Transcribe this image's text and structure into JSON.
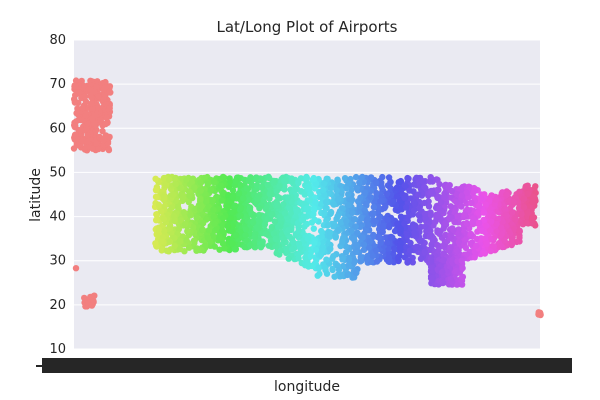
{
  "chart_data": {
    "type": "scatter",
    "title": "Lat/Long Plot of Airports",
    "xlabel": "longitude",
    "ylabel": "latitude",
    "ylim": [
      10,
      80
    ],
    "xlim": [
      -180,
      -65
    ],
    "yticks": [
      "10",
      "20",
      "30",
      "40",
      "50",
      "60",
      "70",
      "80"
    ],
    "grid": true,
    "colors": {
      "background": "#eaeaf2",
      "grid": "#ffffff",
      "text": "#262626",
      "tick_blob": "#262626"
    },
    "x_tick_labels_overlapping": true,
    "hue_by": "longitude",
    "clusters": [
      {
        "name_region": "hawaii",
        "x_range": [
          -180,
          -176
        ],
        "y_range": [
          18,
          29
        ]
      },
      {
        "name_region": "alaska",
        "x_range": [
          -180,
          -171
        ],
        "y_range": [
          55,
          71
        ]
      },
      {
        "name_region": "conus",
        "x_range": [
          -170,
          -66
        ],
        "y_range": [
          25,
          49
        ]
      },
      {
        "name_region": "puerto-rico",
        "x_range": [
          -66,
          -65
        ],
        "y_range": [
          17.5,
          18.5
        ]
      }
    ]
  }
}
